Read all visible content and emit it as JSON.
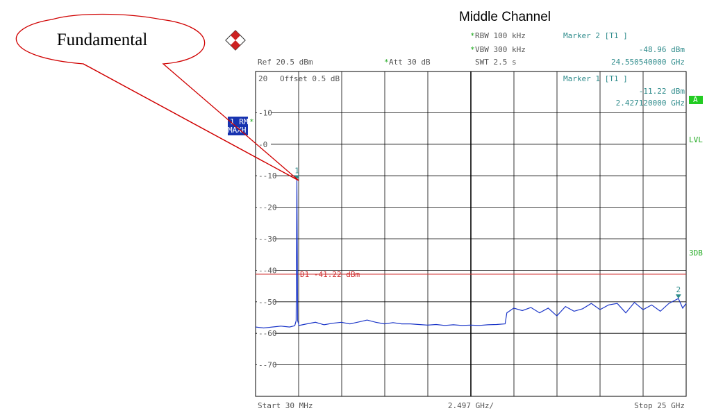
{
  "chart_data": {
    "type": "line",
    "title": "Middle Channel",
    "annotation": "Fundamental",
    "header": {
      "rbw": "RBW 100 kHz",
      "vbw": "VBW 300 kHz",
      "swt": "SWT 2.5 s",
      "ref": "Ref  20.5 dBm",
      "att": "Att  30 dB",
      "offset": "Offset  0.5 dB",
      "star": "*"
    },
    "markers": [
      {
        "id": "1",
        "label": "Marker 1 [T1 ]",
        "level": "-11.22 dBm",
        "freq": "2.427120000 GHz",
        "x_ghz": 2.42712,
        "y_dbm": -11.22
      },
      {
        "id": "2",
        "label": "Marker 2 [T1 ]",
        "level": "-48.96 dBm",
        "freq": "24.550540000 GHz",
        "x_ghz": 24.55054,
        "y_dbm": -48.96
      }
    ],
    "display_line": {
      "label": "D1 -41.22 dBm",
      "y_dbm": -41.22
    },
    "trace_labels": {
      "trace": "1 RM",
      "mode": "MAXH",
      "star": "*"
    },
    "side_labels": [
      "A",
      "LVL",
      "3DB"
    ],
    "x_axis": {
      "start_label": "Start 30 MHz",
      "div_label": "2.497 GHz/",
      "stop_label": "Stop 25 GHz",
      "range_ghz": [
        0.03,
        25
      ]
    },
    "y_axis": {
      "range_dbm": [
        -80,
        20.5
      ],
      "ticks": [
        20,
        10,
        0,
        -10,
        -20,
        -30,
        -40,
        -50,
        -60,
        -70
      ]
    },
    "grid": true,
    "series": [
      {
        "x": [
          0.03,
          0.5,
          1.0,
          1.5,
          2.0,
          2.3,
          2.38,
          2.42712,
          2.47,
          2.55,
          3.0,
          3.5,
          4.0,
          4.5,
          5.0,
          5.5,
          6.0,
          6.5,
          7.0,
          7.5,
          8.0,
          8.5,
          9.0,
          9.5,
          10.0,
          10.5,
          11.0,
          11.5,
          12.0,
          12.5,
          13.0,
          13.5,
          14.0,
          14.5,
          14.6,
          15.0,
          15.5,
          16.0,
          16.5,
          17.0,
          17.5,
          18.0,
          18.5,
          19.0,
          19.5,
          20.0,
          20.5,
          21.0,
          21.5,
          22.0,
          22.5,
          23.0,
          23.5,
          24.0,
          24.55054,
          24.8,
          25.0
        ],
        "y": [
          -58,
          -58.3,
          -58,
          -57.7,
          -58,
          -57.6,
          -56,
          -11.22,
          -56,
          -57.5,
          -57,
          -56.5,
          -57.3,
          -56.8,
          -56.5,
          -57,
          -56.4,
          -55.8,
          -56.5,
          -57,
          -56.6,
          -57,
          -57,
          -57.2,
          -57.4,
          -57.2,
          -57.5,
          -57.3,
          -57.5,
          -57.4,
          -57.5,
          -57.3,
          -57.2,
          -57,
          -53.5,
          -52,
          -52.8,
          -51.8,
          -53.5,
          -52,
          -54.5,
          -51.5,
          -53,
          -52.2,
          -50.5,
          -52.5,
          -51,
          -50.5,
          -53.5,
          -50.2,
          -52.5,
          -51,
          -53,
          -50.5,
          -48.96,
          -52,
          -50.5
        ]
      }
    ]
  }
}
